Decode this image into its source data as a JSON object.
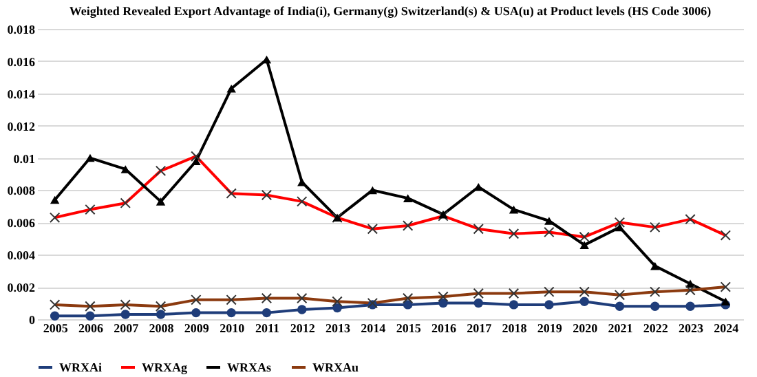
{
  "chart_data": {
    "type": "line",
    "title": "Weighted Revealed Export Advantage of India(i), Germany(g) Switzerland(s) & USA(u) at Product levels (HS Code 3006)",
    "categories": [
      "2005",
      "2006",
      "2007",
      "2008",
      "2009",
      "2010",
      "2011",
      "2012",
      "2013",
      "2014",
      "2015",
      "2016",
      "2017",
      "2018",
      "2019",
      "2020",
      "2021",
      "2022",
      "2023",
      "2024"
    ],
    "series": [
      {
        "name": "WRXAi",
        "color": "#1f3d7a",
        "marker": "circle",
        "values": [
          0.0002,
          0.0002,
          0.0003,
          0.0003,
          0.0004,
          0.0004,
          0.0004,
          0.0006,
          0.0007,
          0.0009,
          0.0009,
          0.001,
          0.001,
          0.0009,
          0.0009,
          0.0011,
          0.0008,
          0.0008,
          0.0008,
          0.0009
        ]
      },
      {
        "name": "WRXAg",
        "color": "#ff0000",
        "marker": "cross",
        "values": [
          0.0063,
          0.0068,
          0.0072,
          0.0092,
          0.0101,
          0.0078,
          0.0077,
          0.0073,
          0.0063,
          0.0056,
          0.0058,
          0.0064,
          0.0056,
          0.0053,
          0.0054,
          0.0051,
          0.006,
          0.0057,
          0.0062,
          0.0052
        ]
      },
      {
        "name": "WRXAs",
        "color": "#000000",
        "marker": "triangle",
        "values": [
          0.0074,
          0.01,
          0.0093,
          0.0073,
          0.0098,
          0.0143,
          0.0161,
          0.0085,
          0.0063,
          0.008,
          0.0075,
          0.0065,
          0.0082,
          0.0068,
          0.0061,
          0.0046,
          0.0057,
          0.0033,
          0.0022,
          0.0011
        ]
      },
      {
        "name": "WRXAu",
        "color": "#8b3a0f",
        "marker": "cross",
        "values": [
          0.0009,
          0.0008,
          0.0009,
          0.0008,
          0.0012,
          0.0012,
          0.0013,
          0.0013,
          0.0011,
          0.001,
          0.0013,
          0.0014,
          0.0016,
          0.0016,
          0.0017,
          0.0017,
          0.0015,
          0.0017,
          0.0018,
          0.002
        ]
      }
    ],
    "ylim": [
      0,
      0.018
    ],
    "yticks": [
      0,
      0.002,
      0.004,
      0.006,
      0.008,
      0.01,
      0.012,
      0.014,
      0.016,
      0.018
    ],
    "grid": "y",
    "legend": "bottom",
    "line_style": "solid"
  }
}
